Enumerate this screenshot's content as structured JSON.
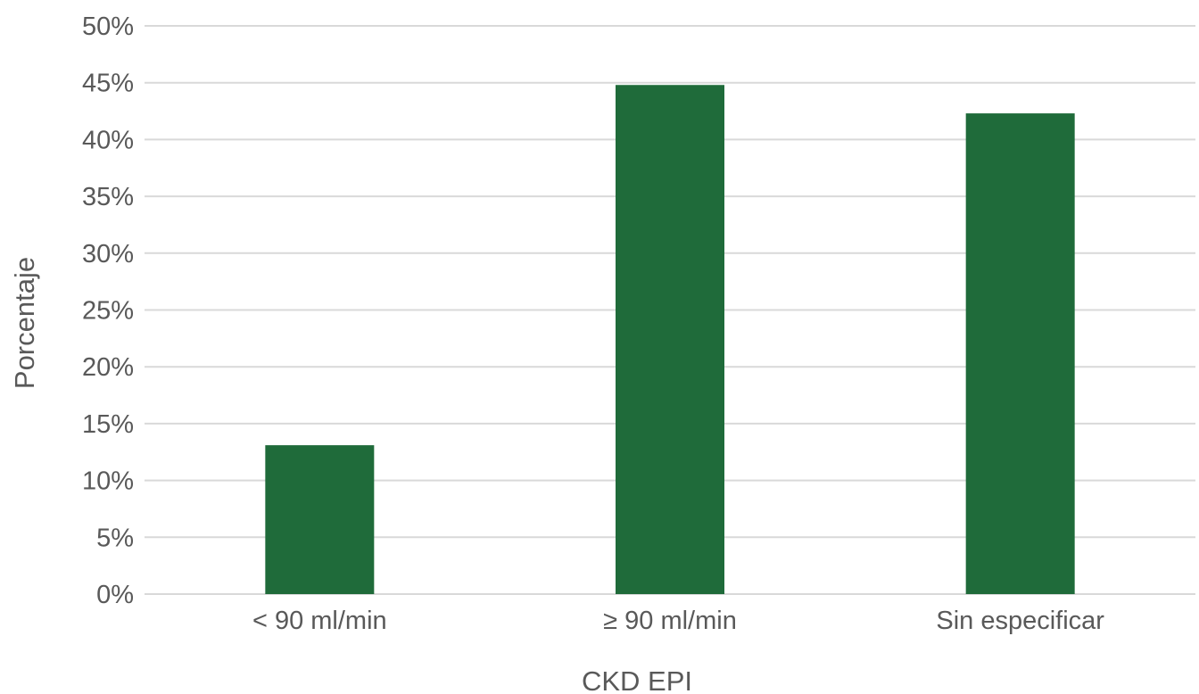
{
  "chart_data": {
    "type": "bar",
    "title": "",
    "xlabel": "CKD EPI",
    "ylabel": "Porcentaje",
    "categories": [
      "< 90 ml/min",
      "≥ 90 ml/min",
      "Sin especificar"
    ],
    "values": [
      13.1,
      44.8,
      42.3
    ],
    "ylim": [
      0,
      50
    ],
    "ytick_step": 5,
    "ytick_labels": [
      "0%",
      "5%",
      "10%",
      "15%",
      "20%",
      "25%",
      "30%",
      "35%",
      "40%",
      "45%",
      "50%"
    ],
    "grid": true,
    "legend": "none",
    "colors": {
      "bar": "#1f6b3a",
      "grid": "#d9d9d9",
      "text": "#595959"
    }
  }
}
